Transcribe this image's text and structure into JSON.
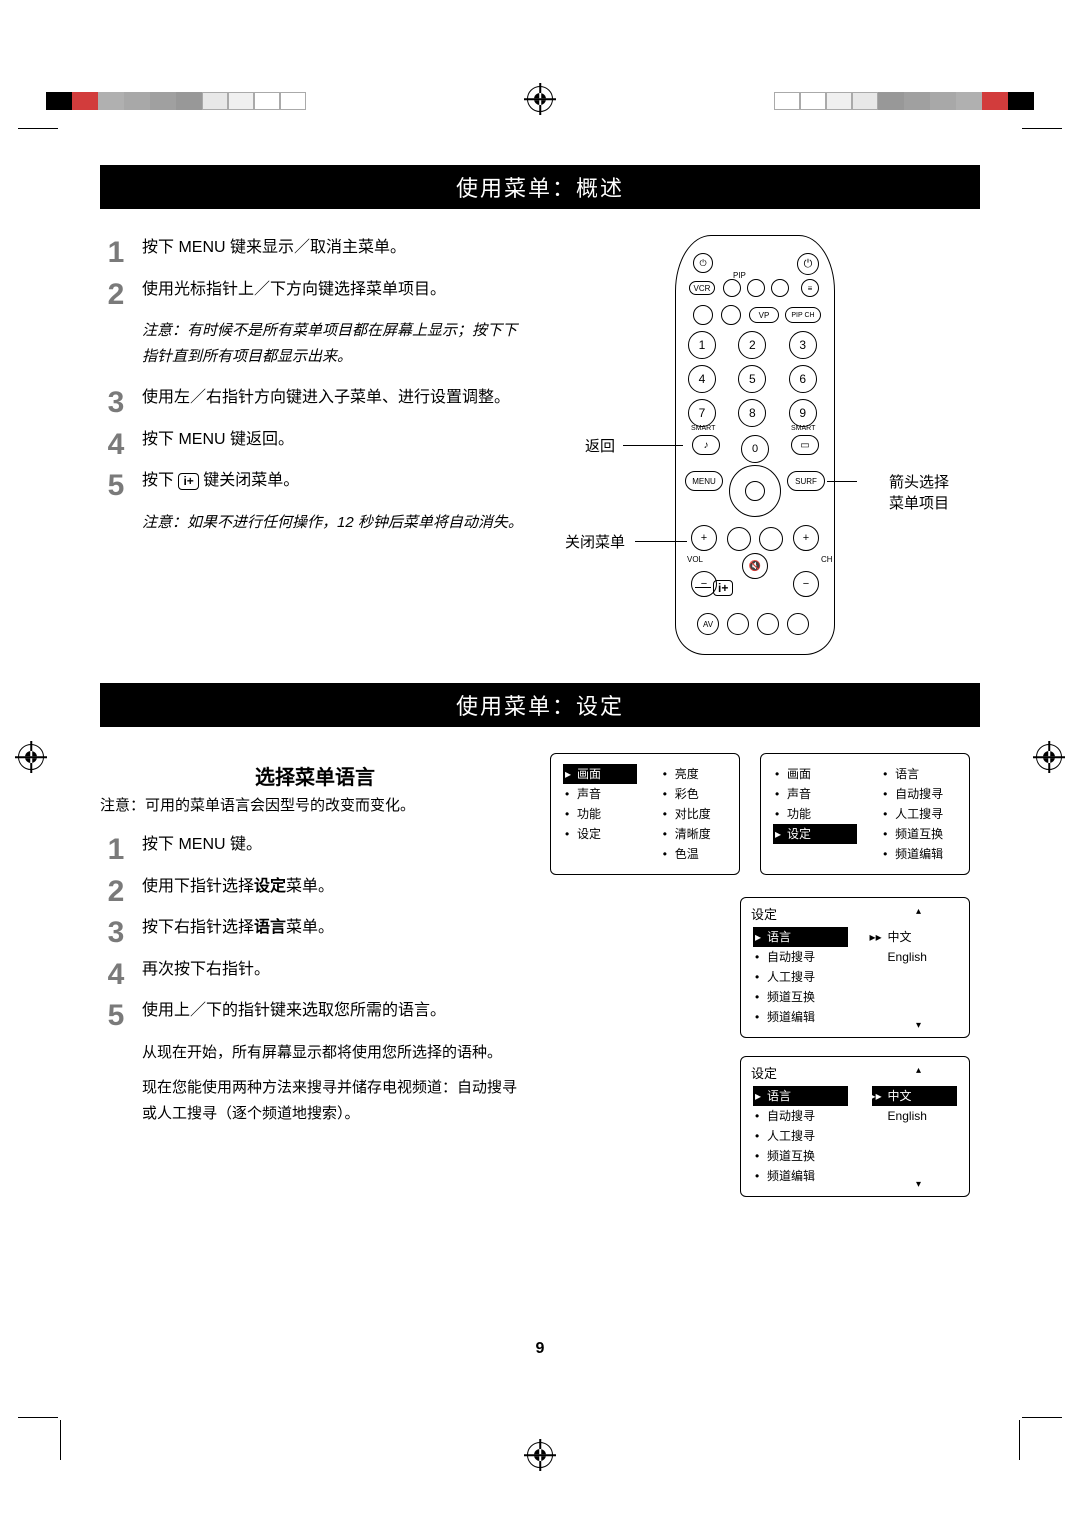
{
  "registration": {
    "colors": [
      "#000000",
      "#d23c3c",
      "#b0b0b0",
      "#a8a8a8",
      "#a0a0a0",
      "#989898",
      "#e8e8e8",
      "#f0f0f0",
      "#ffffff",
      "#ffffff"
    ]
  },
  "section1": {
    "title": "使用菜单：概述",
    "steps": [
      "按下 MENU 键来显示／取消主菜单。",
      "使用光标指针上／下方向键选择菜单项目。",
      "使用左／右指针方向键进入子菜单、进行设置调整。",
      "按下 MENU 键返回。",
      "按下 ⬚ 键关闭菜单。"
    ],
    "note1": "注意：有时候不是所有菜单项目都在屏幕上显示；按下下指针直到所有项目都显示出来。",
    "note2": "注意：如果不进行任何操作，12 秒钟后菜单将自动消失。",
    "annotations": {
      "back": "返回",
      "close": "关闭菜单",
      "arrows": "箭头选择菜单项目"
    },
    "info_key_label": "i+"
  },
  "remote": {
    "numbers": [
      "1",
      "2",
      "3",
      "4",
      "5",
      "6",
      "7",
      "8",
      "9",
      "0"
    ],
    "menu": "MENU",
    "surf": "SURF",
    "smart1": "SMART",
    "smart2": "SMART",
    "pip": "PIP",
    "vol": "VOL",
    "ch": "CH",
    "av": "AV"
  },
  "section2": {
    "title": "使用菜单：设定",
    "subtitle": "选择菜单语言",
    "preface": "注意：可用的菜单语言会因型号的改变而变化。",
    "steps": [
      "按下 MENU 键。",
      "使用下指针选择设定菜单。",
      "按下右指针选择语言菜单。",
      "再次按下右指针。",
      "使用上／下的指针键来选取您所需的语言。"
    ],
    "after1": "从现在开始，所有屏幕显示都将使用您所选择的语种。",
    "after2": "现在您能使用两种方法来搜寻并储存电视频道：自动搜寻或人工搜寻（逐个频道地搜索）。"
  },
  "osd1_left": {
    "items": [
      "画面",
      "声音",
      "功能",
      "设定"
    ],
    "selected_index": 0,
    "right_items": [
      "亮度",
      "彩色",
      "对比度",
      "清晰度",
      "色温"
    ]
  },
  "osd1_right": {
    "items": [
      "画面",
      "声音",
      "功能",
      "设定"
    ],
    "selected_index": 3,
    "right_items": [
      "语言",
      "自动搜寻",
      "人工搜寻",
      "频道互换",
      "频道编辑"
    ]
  },
  "osd2": {
    "header": "设定",
    "left_items": [
      "语言",
      "自动搜寻",
      "人工搜寻",
      "频道互换",
      "频道编辑"
    ],
    "selected_index": 0,
    "right_items": [
      "中文",
      "English"
    ],
    "right_selected": 0
  },
  "osd3": {
    "header": "设定",
    "left_items": [
      "语言",
      "自动搜寻",
      "人工搜寻",
      "频道互换",
      "频道编辑"
    ],
    "selected_index": 0,
    "right_items": [
      "中文",
      "English"
    ],
    "right_selected": 0
  },
  "page_number": "9"
}
